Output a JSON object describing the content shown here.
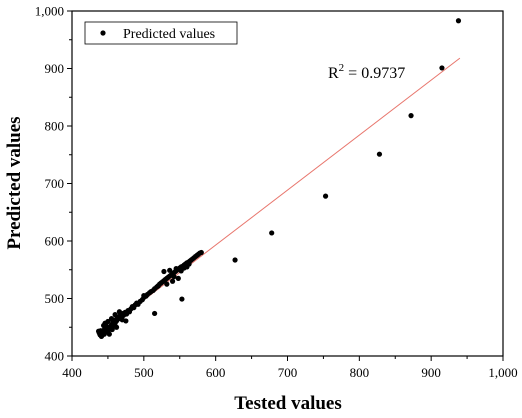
{
  "chart_data": {
    "type": "scatter",
    "xlabel": "Tested values",
    "ylabel": "Predicted values",
    "xlim": [
      400,
      1000
    ],
    "ylim": [
      400,
      1000
    ],
    "x_ticks": [
      400,
      500,
      600,
      700,
      800,
      900,
      1000
    ],
    "y_ticks": [
      400,
      500,
      600,
      700,
      800,
      900,
      1000
    ],
    "x_tick_labels": [
      "400",
      "500",
      "600",
      "700",
      "800",
      "900",
      "1,000"
    ],
    "y_tick_labels": [
      "400",
      "500",
      "600",
      "700",
      "800",
      "900",
      "1,000"
    ],
    "grid": false,
    "legend_position": "top-left",
    "annotation": {
      "base": "R",
      "sup": "2",
      "rest": " = 0.9737"
    },
    "fit_line": {
      "x": [
        440,
        940
      ],
      "y": [
        440,
        918
      ],
      "color": "#e8766d"
    },
    "series": [
      {
        "name": "Predicted values",
        "color": "#000000",
        "points": [
          [
            437,
            443
          ],
          [
            438,
            440
          ],
          [
            439,
            437
          ],
          [
            440,
            444
          ],
          [
            441,
            439
          ],
          [
            442,
            436
          ],
          [
            443,
            442
          ],
          [
            444,
            440
          ],
          [
            445,
            446
          ],
          [
            446,
            441
          ],
          [
            447,
            449
          ],
          [
            448,
            445
          ],
          [
            449,
            444
          ],
          [
            450,
            442
          ],
          [
            451,
            448
          ],
          [
            452,
            446
          ],
          [
            453,
            451
          ],
          [
            454,
            449
          ],
          [
            455,
            454
          ],
          [
            456,
            452
          ],
          [
            457,
            458
          ],
          [
            458,
            455
          ],
          [
            459,
            460
          ],
          [
            460,
            457
          ],
          [
            461,
            463
          ],
          [
            462,
            461
          ],
          [
            463,
            466
          ],
          [
            464,
            464
          ],
          [
            465,
            468
          ],
          [
            466,
            466
          ],
          [
            467,
            470
          ],
          [
            468,
            467
          ],
          [
            469,
            472
          ],
          [
            470,
            469
          ],
          [
            471,
            474
          ],
          [
            472,
            471
          ],
          [
            474,
            476
          ],
          [
            476,
            473
          ],
          [
            478,
            479
          ],
          [
            480,
            477
          ],
          [
            482,
            482
          ],
          [
            484,
            486
          ],
          [
            486,
            484
          ],
          [
            488,
            489
          ],
          [
            490,
            492
          ],
          [
            492,
            490
          ],
          [
            495,
            495
          ],
          [
            498,
            498
          ],
          [
            500,
            502
          ],
          [
            503,
            504
          ],
          [
            505,
            507
          ],
          [
            508,
            510
          ],
          [
            510,
            512
          ],
          [
            513,
            514
          ],
          [
            515,
            517
          ],
          [
            518,
            520
          ],
          [
            520,
            522
          ],
          [
            522,
            525
          ],
          [
            524,
            527
          ],
          [
            526,
            529
          ],
          [
            528,
            531
          ],
          [
            530,
            533
          ],
          [
            532,
            535
          ],
          [
            534,
            537
          ],
          [
            536,
            539
          ],
          [
            538,
            541
          ],
          [
            540,
            543
          ],
          [
            542,
            545
          ],
          [
            544,
            547
          ],
          [
            546,
            549
          ],
          [
            548,
            551
          ],
          [
            550,
            553
          ],
          [
            552,
            555
          ],
          [
            554,
            556
          ],
          [
            556,
            558
          ],
          [
            558,
            560
          ],
          [
            560,
            562
          ],
          [
            562,
            563
          ],
          [
            564,
            565
          ],
          [
            566,
            567
          ],
          [
            568,
            569
          ],
          [
            570,
            571
          ],
          [
            572,
            573
          ],
          [
            574,
            575
          ],
          [
            576,
            577
          ],
          [
            578,
            579
          ],
          [
            580,
            580
          ],
          [
            444,
            453
          ],
          [
            446,
            457
          ],
          [
            450,
            460
          ],
          [
            455,
            465
          ],
          [
            460,
            472
          ],
          [
            466,
            477
          ],
          [
            470,
            463
          ],
          [
            475,
            461
          ],
          [
            462,
            450
          ],
          [
            456,
            446
          ],
          [
            448,
            452
          ],
          [
            452,
            438
          ],
          [
            445,
            438
          ],
          [
            441,
            434
          ],
          [
            528,
            547
          ],
          [
            536,
            549
          ],
          [
            542,
            538
          ],
          [
            548,
            535
          ],
          [
            540,
            530
          ],
          [
            552,
            548
          ],
          [
            556,
            553
          ],
          [
            545,
            552
          ],
          [
            560,
            555
          ],
          [
            563,
            560
          ],
          [
            532,
            525
          ],
          [
            520,
            522
          ],
          [
            515,
            474
          ],
          [
            553,
            499
          ],
          [
            500,
            505
          ],
          [
            627,
            567
          ],
          [
            678,
            614
          ],
          [
            753,
            678
          ],
          [
            828,
            751
          ],
          [
            872,
            818
          ],
          [
            915,
            901
          ],
          [
            938,
            983
          ]
        ]
      }
    ]
  }
}
